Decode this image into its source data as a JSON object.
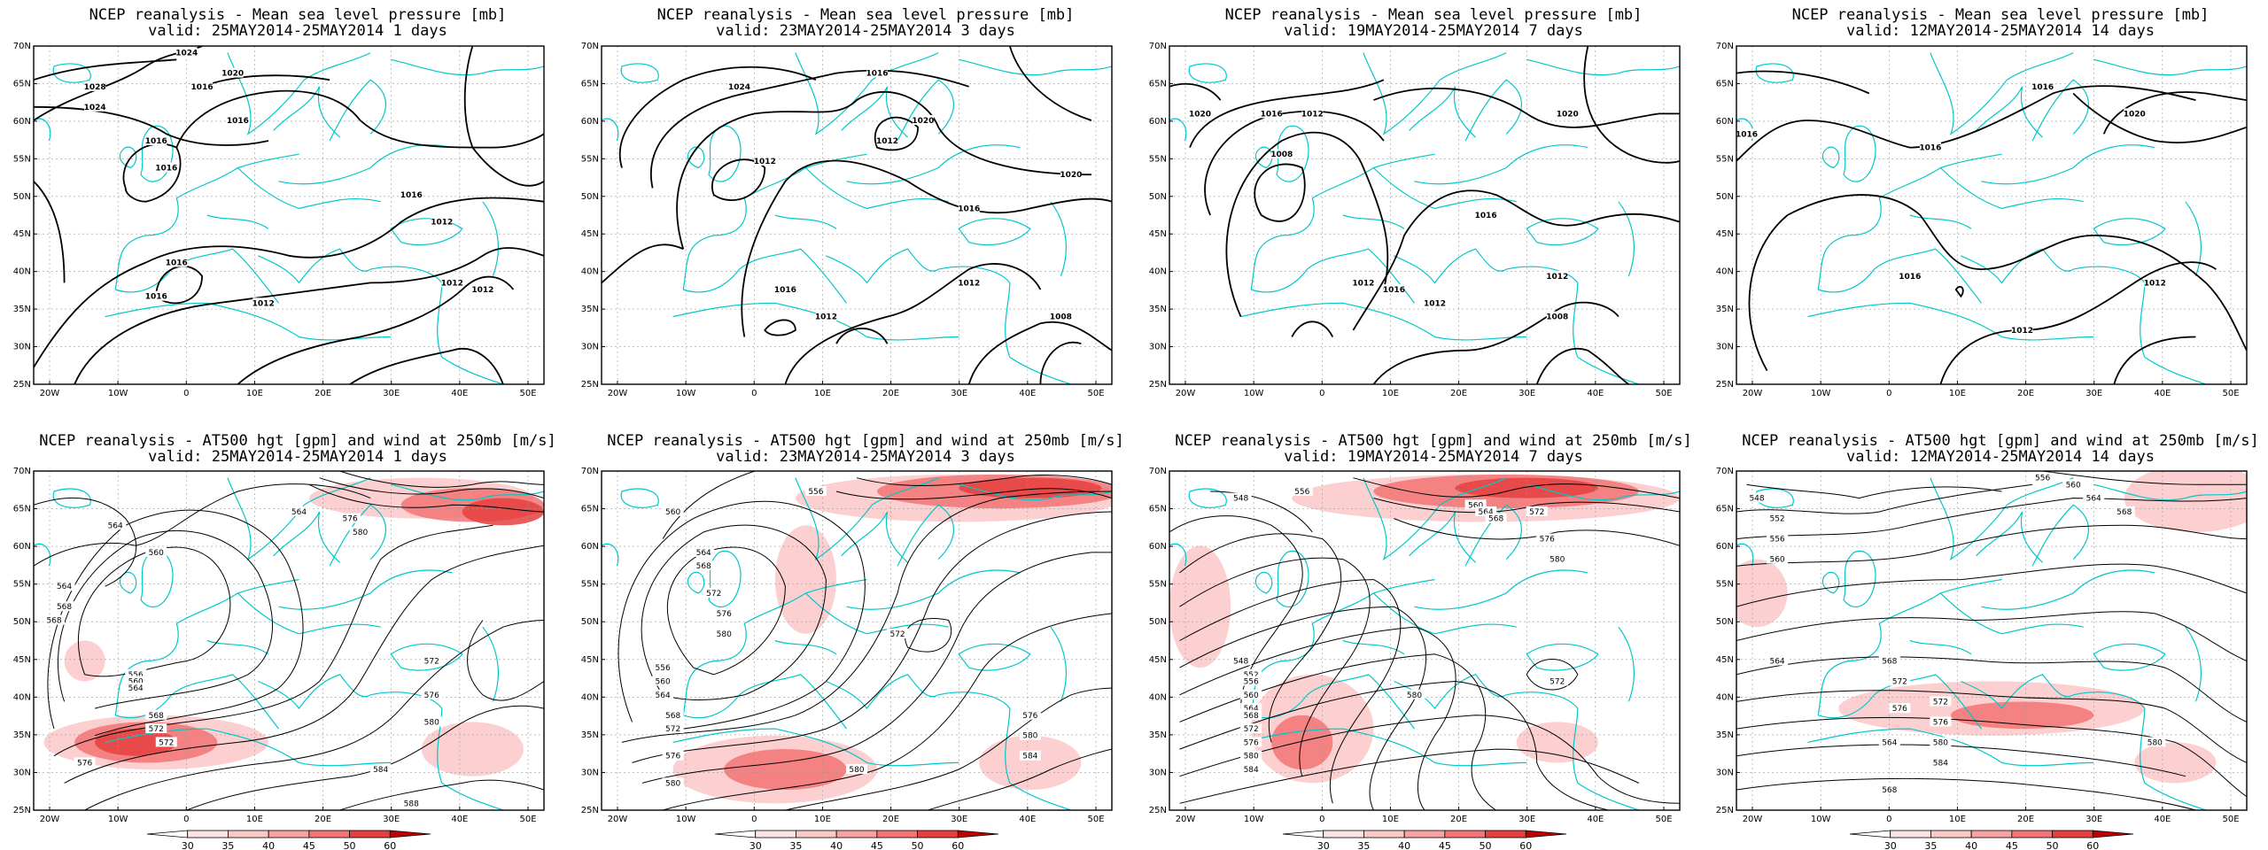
{
  "panels": [
    {
      "title": "NCEP reanalysis - Mean sea level pressure [mb]",
      "valid": "valid: 25MAY2014-25MAY2014   1 days",
      "labels": [
        "1024",
        "1020",
        "1016",
        "1016",
        "1028",
        "1024",
        "1016",
        "1016",
        "1016",
        "1012",
        "1016",
        "1016",
        "1012",
        "1012",
        "1012"
      ]
    },
    {
      "title": "NCEP reanalysis - Mean sea level pressure [mb]",
      "valid": "valid: 23MAY2014-25MAY2014   3 days",
      "labels": [
        "1016",
        "1024",
        "1020",
        "1012",
        "1012",
        "1020",
        "1016",
        "1016",
        "1012",
        "1012",
        "1008"
      ]
    },
    {
      "title": "NCEP reanalysis - Mean sea level pressure [mb]",
      "valid": "valid: 19MAY2014-25MAY2014   7 days",
      "labels": [
        "1016",
        "1012",
        "1020",
        "1020",
        "1008",
        "1016",
        "1012",
        "1016",
        "1012",
        "1012",
        "1008"
      ]
    },
    {
      "title": "NCEP reanalysis - Mean sea level pressure [mb]",
      "valid": "valid: 12MAY2014-25MAY2014   14 days",
      "labels": [
        "1016",
        "1020",
        "1016",
        "1016",
        "1016",
        "1012",
        "1012"
      ]
    },
    {
      "title": "NCEP reanalysis - AT500 hgt [gpm] and wind at 250mb [m/s]",
      "valid": "valid: 25MAY2014-25MAY2014   1 days",
      "labels": [
        "564",
        "564",
        "568",
        "572",
        "576",
        "560",
        "564",
        "568",
        "556",
        "560",
        "564",
        "568",
        "572",
        "576",
        "580",
        "572",
        "576",
        "580",
        "584",
        "588"
      ]
    },
    {
      "title": "NCEP reanalysis - AT500 hgt [gpm] and wind at 250mb [m/s]",
      "valid": "valid: 23MAY2014-25MAY2014   3 days",
      "labels": [
        "556",
        "560",
        "564",
        "568",
        "572",
        "576",
        "580",
        "556",
        "560",
        "564",
        "568",
        "572",
        "576",
        "580",
        "572",
        "576",
        "580",
        "584",
        "580"
      ]
    },
    {
      "title": "NCEP reanalysis - AT500 hgt [gpm] and wind at 250mb [m/s]",
      "valid": "valid: 19MAY2014-25MAY2014   7 days",
      "labels": [
        "548",
        "556",
        "560",
        "564",
        "568",
        "572",
        "576",
        "580",
        "548",
        "552",
        "556",
        "560",
        "564",
        "568",
        "572",
        "576",
        "580",
        "584",
        "572",
        "580"
      ]
    },
    {
      "title": "NCEP reanalysis - AT500 hgt [gpm] and wind at 250mb [m/s]",
      "valid": "valid: 12MAY2014-25MAY2014   14 days",
      "labels": [
        "548",
        "552",
        "556",
        "560",
        "564",
        "568",
        "572",
        "576",
        "556",
        "560",
        "564",
        "568",
        "572",
        "576",
        "580",
        "584",
        "580",
        "564",
        "568"
      ]
    }
  ],
  "lat_ticks": [
    "25N",
    "30N",
    "35N",
    "40N",
    "45N",
    "50N",
    "55N",
    "60N",
    "65N",
    "70N"
  ],
  "lon_ticks": [
    "20W",
    "10W",
    "0",
    "10E",
    "20E",
    "30E",
    "40E",
    "50E"
  ],
  "colorbar_ticks": [
    "30",
    "35",
    "40",
    "45",
    "50",
    "60"
  ],
  "colors": {
    "coast": "#00c8c8",
    "contour": "#000000",
    "wind": [
      "#fde4e4",
      "#fbc8c8",
      "#f8a2a2",
      "#f27474",
      "#e53f3f",
      "#c00000"
    ],
    "grid": "#999999"
  }
}
